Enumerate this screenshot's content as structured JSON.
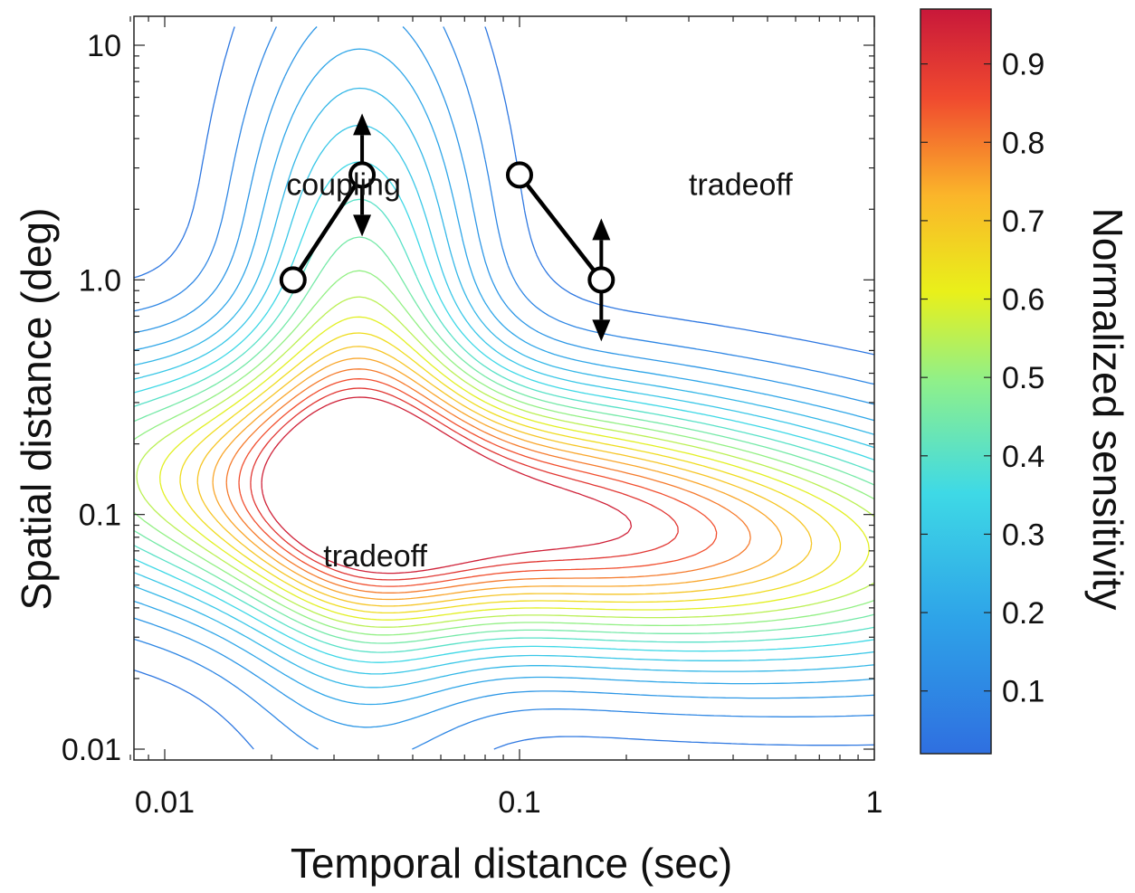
{
  "chart_data": {
    "type": "contour",
    "title": "",
    "xlabel": "Temporal distance (sec)",
    "ylabel": "Spatial distance (deg)",
    "x_scale": "log",
    "y_scale": "log",
    "xlim": [
      0.008,
      1
    ],
    "ylim": [
      0.01,
      12
    ],
    "x_ticks": [
      0.01,
      0.1,
      1
    ],
    "x_tick_labels": [
      "0.01",
      "0.1",
      "1"
    ],
    "y_ticks": [
      0.01,
      0.1,
      1,
      10
    ],
    "y_tick_labels": [
      "0.01",
      "0.1",
      "1.0",
      "10"
    ],
    "grid": false,
    "colorbar": {
      "label": "Normalized sensitivity",
      "range": [
        0.02,
        0.97
      ],
      "ticks": [
        0.1,
        0.2,
        0.3,
        0.4,
        0.5,
        0.6,
        0.7,
        0.8,
        0.9
      ],
      "tick_labels": [
        "0.1",
        "0.2",
        "0.3",
        "0.4",
        "0.5",
        "0.6",
        "0.7",
        "0.8",
        "0.9"
      ],
      "colormap": "jet"
    },
    "surface_peak": {
      "temporal": 0.1,
      "spatial": 0.1
    },
    "contour_levels": [
      0.05,
      0.1,
      0.15,
      0.2,
      0.25,
      0.3,
      0.35,
      0.4,
      0.45,
      0.5,
      0.55,
      0.6,
      0.65,
      0.7,
      0.75,
      0.8,
      0.85,
      0.9,
      0.95
    ],
    "annotations": [
      {
        "text": "coupling",
        "temporal": 0.022,
        "spatial": 2.3
      },
      {
        "text": "tradeoff",
        "temporal": 0.3,
        "spatial": 2.3
      },
      {
        "text": "tradeoff",
        "temporal": 0.028,
        "spatial": 0.06
      }
    ],
    "markers": [
      {
        "group": "coupling",
        "from": {
          "temporal": 0.023,
          "spatial": 1.0
        },
        "to": {
          "temporal": 0.036,
          "spatial": 2.8
        },
        "arrow_at": "to"
      },
      {
        "group": "tradeoff",
        "from": {
          "temporal": 0.1,
          "spatial": 2.8
        },
        "to": {
          "temporal": 0.17,
          "spatial": 1.0
        },
        "arrow_at": "to"
      }
    ]
  }
}
